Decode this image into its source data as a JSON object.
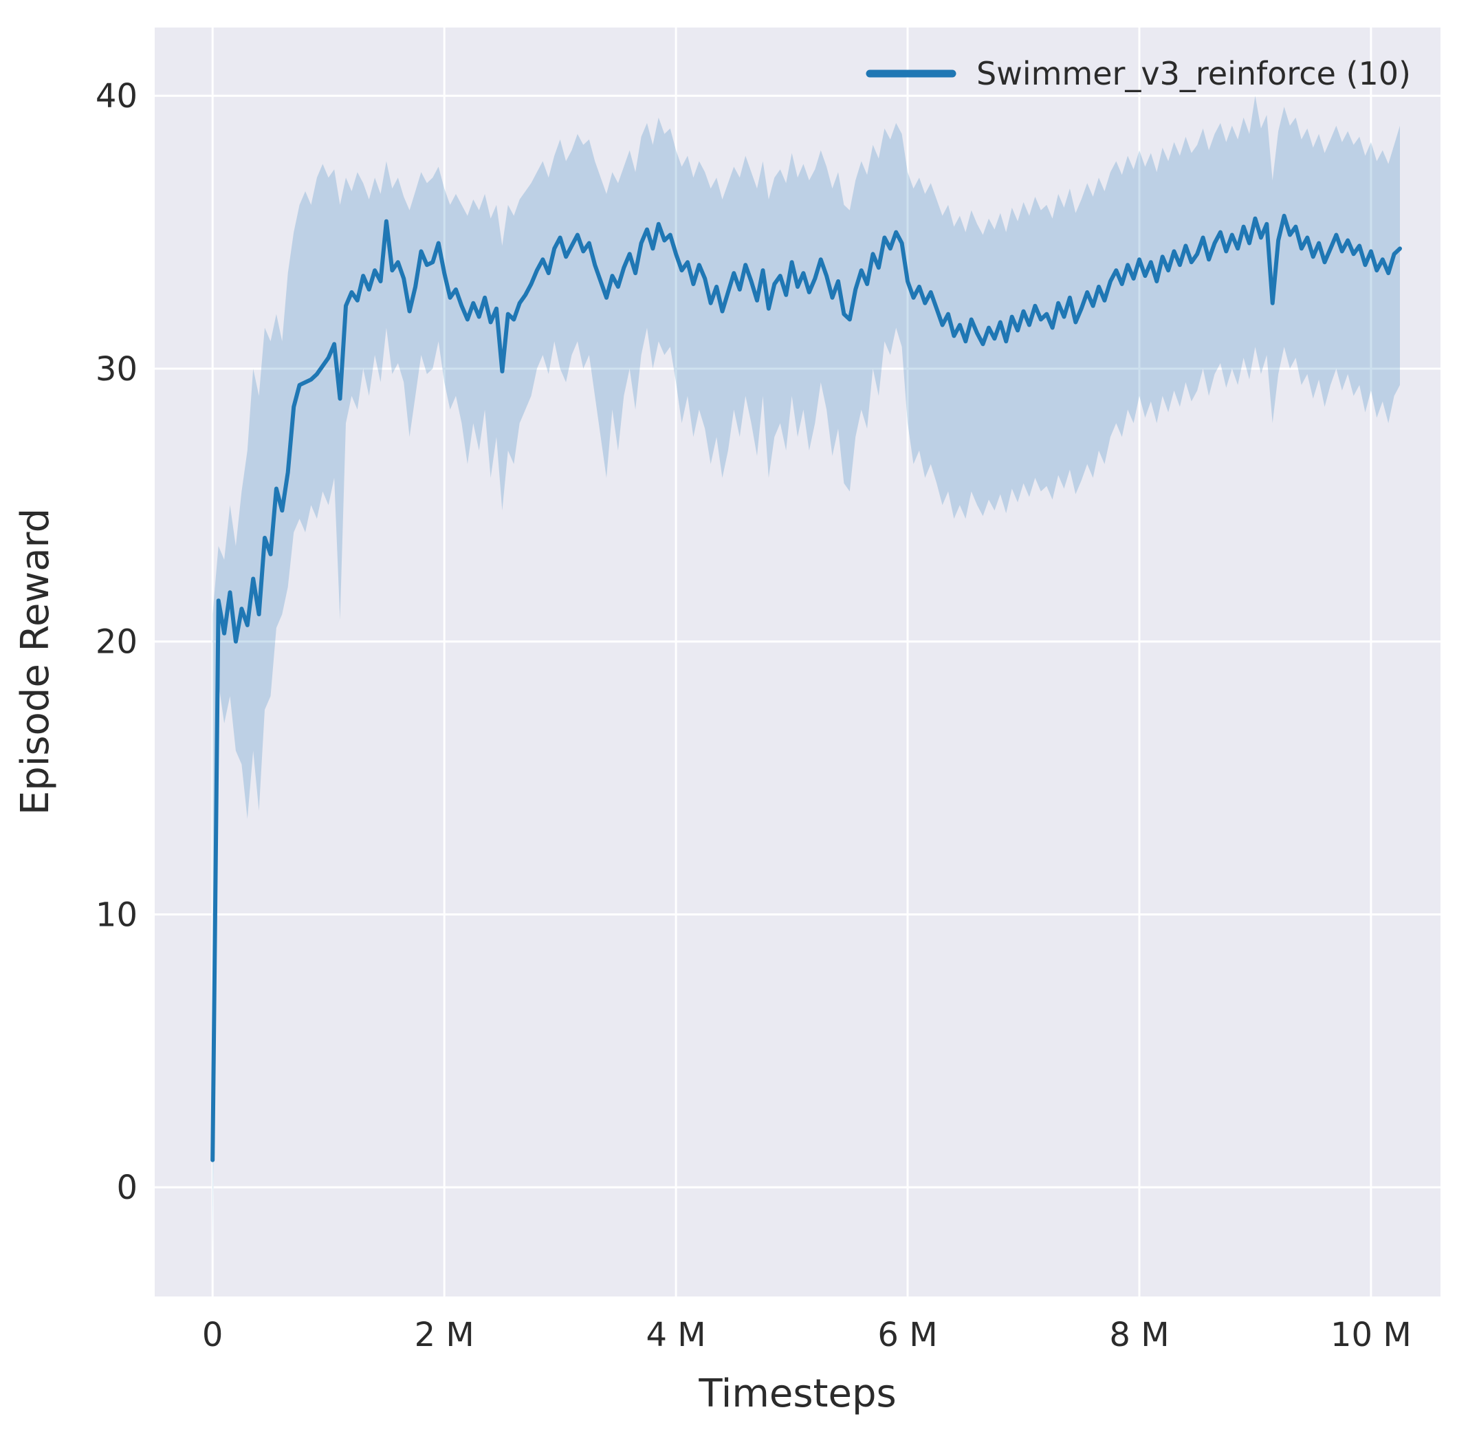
{
  "styles": {
    "figure_bg": "#ffffff",
    "plot_bg": "#eaeaf2",
    "grid_color": "#ffffff",
    "text_color": "#2b2b2b",
    "line_color": "#1f77b4",
    "band_fill": "rgba(31,119,180,0.22)"
  },
  "chart_data": {
    "type": "line",
    "title": "",
    "xlabel": "Timesteps",
    "ylabel": "Episode Reward",
    "grid": true,
    "legend_position": "upper right",
    "x_tick_labels": [
      "0",
      "2 M",
      "4 M",
      "6 M",
      "8 M",
      "10 M"
    ],
    "x_tick_values_million": [
      0,
      2,
      4,
      6,
      8,
      10
    ],
    "y_tick_labels": [
      "0",
      "10",
      "20",
      "30",
      "40"
    ],
    "y_tick_values": [
      0,
      10,
      20,
      30,
      40
    ],
    "xlim_million": [
      -0.5,
      10.6
    ],
    "ylim": [
      -4,
      42.5
    ],
    "series": [
      {
        "name": "Swimmer_v3_reinforce (10)",
        "color": "#1f77b4",
        "band_alpha": 0.22,
        "x_start_million": 0,
        "x_step_million": 0.05,
        "mean": [
          1.0,
          21.5,
          20.3,
          21.8,
          20.0,
          21.2,
          20.6,
          22.3,
          21.0,
          23.8,
          23.2,
          25.6,
          24.8,
          26.2,
          28.6,
          29.4,
          29.5,
          29.6,
          29.8,
          30.1,
          30.4,
          30.9,
          28.9,
          32.3,
          32.8,
          32.5,
          33.4,
          32.9,
          33.6,
          33.2,
          35.4,
          33.6,
          33.9,
          33.3,
          32.1,
          33.0,
          34.3,
          33.8,
          33.9,
          34.6,
          33.5,
          32.6,
          32.9,
          32.3,
          31.8,
          32.4,
          31.9,
          32.6,
          31.7,
          32.2,
          29.9,
          32.0,
          31.8,
          32.4,
          32.7,
          33.1,
          33.6,
          34.0,
          33.5,
          34.4,
          34.8,
          34.1,
          34.5,
          34.9,
          34.3,
          34.6,
          33.8,
          33.2,
          32.6,
          33.4,
          33.0,
          33.7,
          34.2,
          33.5,
          34.6,
          35.1,
          34.4,
          35.3,
          34.7,
          34.9,
          34.2,
          33.6,
          33.9,
          33.1,
          33.8,
          33.3,
          32.4,
          33.0,
          32.1,
          32.8,
          33.5,
          32.9,
          33.8,
          33.2,
          32.5,
          33.6,
          32.2,
          33.1,
          33.4,
          32.7,
          33.9,
          33.0,
          33.5,
          32.8,
          33.3,
          34.0,
          33.4,
          32.6,
          33.2,
          32.0,
          31.8,
          32.9,
          33.6,
          33.1,
          34.2,
          33.7,
          34.8,
          34.4,
          35.0,
          34.6,
          33.2,
          32.6,
          33.0,
          32.4,
          32.8,
          32.2,
          31.6,
          32.0,
          31.2,
          31.6,
          31.0,
          31.8,
          31.3,
          30.9,
          31.5,
          31.1,
          31.7,
          31.0,
          31.9,
          31.4,
          32.1,
          31.6,
          32.3,
          31.8,
          32.0,
          31.5,
          32.4,
          31.9,
          32.6,
          31.7,
          32.2,
          32.8,
          32.3,
          33.0,
          32.5,
          33.2,
          33.6,
          33.1,
          33.8,
          33.3,
          34.0,
          33.4,
          33.9,
          33.2,
          34.1,
          33.6,
          34.3,
          33.8,
          34.5,
          33.9,
          34.2,
          34.8,
          34.0,
          34.6,
          35.0,
          34.3,
          34.9,
          34.4,
          35.2,
          34.6,
          35.5,
          34.8,
          35.3,
          32.4,
          34.7,
          35.6,
          34.9,
          35.2,
          34.4,
          34.8,
          34.1,
          34.6,
          33.9,
          34.4,
          34.9,
          34.3,
          34.7,
          34.2,
          34.5,
          33.8,
          34.3,
          33.6,
          34.0,
          33.5,
          34.2,
          34.4
        ],
        "band_low": [
          -2.5,
          18.5,
          17.0,
          18.0,
          16.0,
          15.5,
          13.5,
          16.0,
          13.8,
          17.5,
          18.0,
          20.5,
          21.0,
          22.0,
          24.0,
          24.5,
          24.0,
          25.0,
          24.5,
          25.5,
          25.0,
          26.0,
          20.8,
          28.0,
          29.0,
          28.5,
          30.0,
          29.0,
          30.5,
          29.5,
          31.5,
          29.8,
          30.2,
          29.5,
          27.5,
          29.0,
          30.5,
          29.8,
          30.0,
          31.0,
          29.5,
          28.5,
          29.0,
          28.0,
          26.5,
          28.0,
          27.0,
          28.5,
          26.0,
          27.5,
          24.8,
          27.0,
          26.5,
          28.0,
          28.5,
          29.0,
          30.0,
          30.5,
          29.8,
          31.0,
          30.0,
          29.5,
          30.5,
          31.0,
          30.0,
          30.5,
          29.0,
          27.5,
          26.0,
          28.5,
          27.0,
          29.0,
          30.0,
          28.5,
          30.5,
          31.5,
          30.0,
          31.0,
          30.5,
          30.8,
          29.5,
          28.0,
          29.0,
          27.5,
          28.5,
          27.8,
          26.5,
          27.5,
          26.0,
          27.0,
          28.5,
          27.5,
          29.0,
          28.0,
          26.8,
          29.0,
          26.0,
          27.5,
          28.0,
          27.0,
          29.0,
          27.5,
          28.5,
          27.0,
          28.0,
          29.5,
          28.5,
          26.8,
          27.8,
          25.8,
          25.5,
          27.5,
          28.5,
          27.8,
          30.0,
          29.0,
          31.0,
          30.5,
          31.5,
          30.8,
          28.0,
          26.5,
          27.0,
          26.0,
          26.5,
          25.8,
          25.0,
          25.5,
          24.5,
          25.0,
          24.5,
          25.5,
          25.0,
          24.6,
          25.2,
          24.8,
          25.4,
          24.7,
          25.6,
          25.1,
          25.8,
          25.3,
          26.0,
          25.5,
          25.7,
          25.2,
          26.1,
          25.6,
          26.3,
          25.4,
          25.9,
          26.5,
          26.0,
          27.0,
          26.5,
          27.5,
          28.0,
          27.5,
          28.5,
          28.0,
          29.0,
          28.2,
          28.8,
          28.0,
          29.0,
          28.4,
          29.2,
          28.6,
          29.5,
          28.8,
          29.2,
          30.0,
          29.0,
          29.8,
          30.2,
          29.3,
          30.0,
          29.4,
          30.4,
          29.6,
          30.8,
          29.8,
          30.5,
          28.0,
          29.8,
          30.8,
          30.0,
          30.4,
          29.4,
          29.8,
          28.9,
          29.6,
          28.6,
          29.4,
          30.0,
          29.2,
          29.8,
          29.0,
          29.4,
          28.4,
          29.2,
          28.2,
          28.8,
          28.0,
          29.0,
          29.4
        ],
        "band_high": [
          21.0,
          23.5,
          23.0,
          25.0,
          23.5,
          25.5,
          27.0,
          30.0,
          29.0,
          31.5,
          31.0,
          32.0,
          31.0,
          33.5,
          35.0,
          36.0,
          36.5,
          36.0,
          37.0,
          37.5,
          37.0,
          37.3,
          36.0,
          37.0,
          36.5,
          37.2,
          36.8,
          36.2,
          37.0,
          36.4,
          37.6,
          36.6,
          37.0,
          36.3,
          35.8,
          36.5,
          37.2,
          36.8,
          37.0,
          37.4,
          36.6,
          36.0,
          36.4,
          36.0,
          35.6,
          36.2,
          35.8,
          36.4,
          35.5,
          36.0,
          34.5,
          36.0,
          35.6,
          36.2,
          36.5,
          36.8,
          37.2,
          37.6,
          37.0,
          37.8,
          38.4,
          37.6,
          38.0,
          38.6,
          38.2,
          38.4,
          37.6,
          37.0,
          36.4,
          37.2,
          36.8,
          37.4,
          38.0,
          37.2,
          38.5,
          39.0,
          38.2,
          39.2,
          38.6,
          38.8,
          38.0,
          37.4,
          37.8,
          37.0,
          37.6,
          37.2,
          36.6,
          37.0,
          36.2,
          36.8,
          37.4,
          37.0,
          37.8,
          37.2,
          36.6,
          37.6,
          36.2,
          37.0,
          37.3,
          36.8,
          37.9,
          37.0,
          37.5,
          36.9,
          37.3,
          38.0,
          37.4,
          36.6,
          37.2,
          36.0,
          35.8,
          36.9,
          37.6,
          37.1,
          38.2,
          37.7,
          38.8,
          38.4,
          39.0,
          38.6,
          37.2,
          36.6,
          37.0,
          36.4,
          36.8,
          36.2,
          35.6,
          36.0,
          35.2,
          35.6,
          35.0,
          35.8,
          35.3,
          34.9,
          35.5,
          35.1,
          35.7,
          35.0,
          35.9,
          35.4,
          36.1,
          35.6,
          36.3,
          35.8,
          36.0,
          35.5,
          36.4,
          35.9,
          36.6,
          35.7,
          36.2,
          36.8,
          36.3,
          37.0,
          36.5,
          37.2,
          37.6,
          37.1,
          37.8,
          37.3,
          38.0,
          37.4,
          37.9,
          37.2,
          38.1,
          37.6,
          38.3,
          37.8,
          38.5,
          37.9,
          38.2,
          38.8,
          38.0,
          38.6,
          39.0,
          38.3,
          38.9,
          38.4,
          39.2,
          38.6,
          40.0,
          38.8,
          39.3,
          36.9,
          38.7,
          39.6,
          38.9,
          39.2,
          38.4,
          38.8,
          38.1,
          38.6,
          37.9,
          38.4,
          38.9,
          38.3,
          38.7,
          38.2,
          38.5,
          37.8,
          38.3,
          37.6,
          38.0,
          37.5,
          38.2,
          38.9
        ]
      }
    ]
  }
}
